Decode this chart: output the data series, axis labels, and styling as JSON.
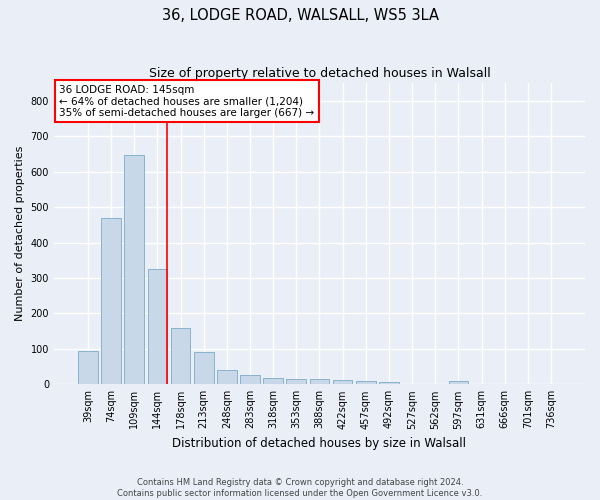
{
  "title": "36, LODGE ROAD, WALSALL, WS5 3LA",
  "subtitle": "Size of property relative to detached houses in Walsall",
  "xlabel": "Distribution of detached houses by size in Walsall",
  "ylabel": "Number of detached properties",
  "footer_line1": "Contains HM Land Registry data © Crown copyright and database right 2024.",
  "footer_line2": "Contains public sector information licensed under the Open Government Licence v3.0.",
  "categories": [
    "39sqm",
    "74sqm",
    "109sqm",
    "144sqm",
    "178sqm",
    "213sqm",
    "248sqm",
    "283sqm",
    "318sqm",
    "353sqm",
    "388sqm",
    "422sqm",
    "457sqm",
    "492sqm",
    "527sqm",
    "562sqm",
    "597sqm",
    "631sqm",
    "666sqm",
    "701sqm",
    "736sqm"
  ],
  "values": [
    95,
    470,
    648,
    325,
    158,
    92,
    40,
    25,
    18,
    15,
    14,
    13,
    10,
    7,
    0,
    0,
    8,
    0,
    0,
    0,
    0
  ],
  "bar_color": "#c8d8e8",
  "bar_edge_color": "#7aaac8",
  "annotation_box_text_line1": "36 LODGE ROAD: 145sqm",
  "annotation_box_text_line2": "← 64% of detached houses are smaller (1,204)",
  "annotation_box_text_line3": "35% of semi-detached houses are larger (667) →",
  "annotation_box_color": "white",
  "annotation_box_edge_color": "red",
  "marker_line_color": "red",
  "marker_bar_index": 3,
  "ylim": [
    0,
    850
  ],
  "yticks": [
    0,
    100,
    200,
    300,
    400,
    500,
    600,
    700,
    800
  ],
  "bg_color": "#eaeff7",
  "plot_bg_color": "#eaeff7",
  "grid_color": "white",
  "title_fontsize": 10.5,
  "subtitle_fontsize": 9,
  "ylabel_fontsize": 8,
  "xlabel_fontsize": 8.5,
  "tick_fontsize": 7,
  "annot_fontsize": 7.5,
  "footer_fontsize": 6
}
